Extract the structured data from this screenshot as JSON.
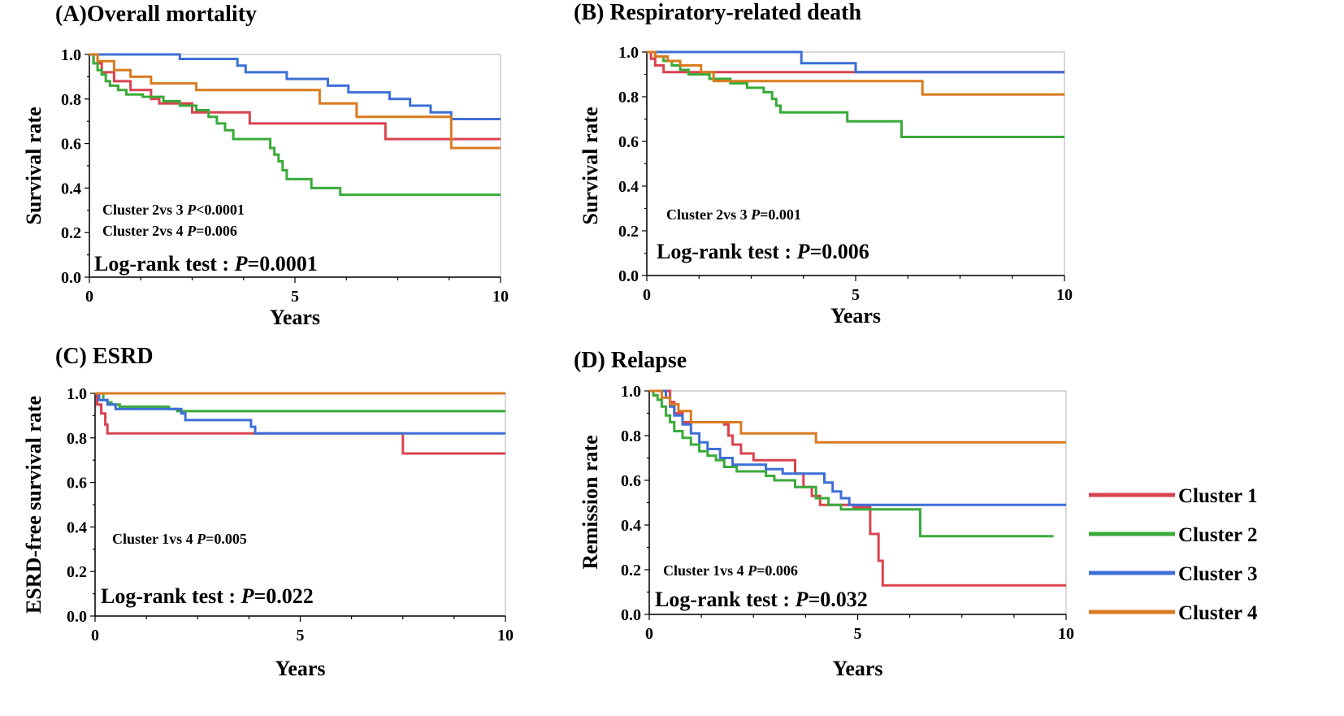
{
  "colors": {
    "Cluster 1": "#d9434f",
    "Cluster 2": "#3aaa3a",
    "Cluster 3": "#3d6fd6",
    "Cluster 4": "#d97b20"
  },
  "legend": [
    "Cluster 1",
    "Cluster 2",
    "Cluster 3",
    "Cluster 4"
  ],
  "chart_data": [
    {
      "id": "A",
      "type": "line",
      "step": true,
      "title": "(A)Overall mortality",
      "xlabel": "Years",
      "ylabel": "Survival rate",
      "xlim": [
        0,
        10
      ],
      "ylim": [
        0,
        1
      ],
      "xticks": [
        "0",
        "5",
        "10"
      ],
      "yticks": [
        "0.0",
        "0.2",
        "0.4",
        "0.6",
        "0.8",
        "1.0"
      ],
      "annotations": [
        {
          "pre": "Cluster 2vs 3 ",
          "p": "P",
          "post": "<0.0001"
        },
        {
          "pre": "Cluster 2vs 4 ",
          "p": "P",
          "post": "=0.006"
        }
      ],
      "logrank": {
        "pre": "Log-rank test : ",
        "p": "P",
        "post": "=0.0001"
      },
      "series": [
        {
          "name": "Cluster 1",
          "points": [
            [
              0,
              1
            ],
            [
              0.1,
              0.96
            ],
            [
              0.3,
              0.92
            ],
            [
              0.6,
              0.88
            ],
            [
              1,
              0.84
            ],
            [
              1.5,
              0.8
            ],
            [
              1.7,
              0.78
            ],
            [
              2.5,
              0.74
            ],
            [
              3.9,
              0.69
            ],
            [
              7.2,
              0.62
            ],
            [
              10,
              0.62
            ]
          ]
        },
        {
          "name": "Cluster 2",
          "points": [
            [
              0,
              1
            ],
            [
              0.1,
              0.96
            ],
            [
              0.2,
              0.93
            ],
            [
              0.3,
              0.91
            ],
            [
              0.4,
              0.88
            ],
            [
              0.5,
              0.86
            ],
            [
              0.7,
              0.84
            ],
            [
              0.9,
              0.82
            ],
            [
              1.3,
              0.81
            ],
            [
              1.8,
              0.79
            ],
            [
              2.2,
              0.77
            ],
            [
              2.6,
              0.75
            ],
            [
              2.9,
              0.72
            ],
            [
              3.1,
              0.69
            ],
            [
              3.3,
              0.66
            ],
            [
              3.5,
              0.62
            ],
            [
              4.4,
              0.58
            ],
            [
              4.5,
              0.55
            ],
            [
              4.6,
              0.52
            ],
            [
              4.7,
              0.48
            ],
            [
              4.8,
              0.44
            ],
            [
              5.4,
              0.4
            ],
            [
              6.1,
              0.37
            ],
            [
              10,
              0.37
            ]
          ]
        },
        {
          "name": "Cluster 3",
          "points": [
            [
              0,
              1
            ],
            [
              1.7,
              1
            ],
            [
              2.2,
              0.98
            ],
            [
              3.6,
              0.95
            ],
            [
              3.8,
              0.92
            ],
            [
              4.8,
              0.89
            ],
            [
              5.8,
              0.86
            ],
            [
              6.3,
              0.83
            ],
            [
              7.3,
              0.8
            ],
            [
              7.8,
              0.77
            ],
            [
              8.3,
              0.74
            ],
            [
              8.8,
              0.71
            ],
            [
              10,
              0.71
            ]
          ]
        },
        {
          "name": "Cluster 4",
          "points": [
            [
              0,
              1
            ],
            [
              0.2,
              0.97
            ],
            [
              0.6,
              0.93
            ],
            [
              1,
              0.9
            ],
            [
              1.5,
              0.87
            ],
            [
              2.6,
              0.84
            ],
            [
              5.6,
              0.78
            ],
            [
              6.5,
              0.72
            ],
            [
              8.8,
              0.58
            ],
            [
              10,
              0.58
            ]
          ]
        }
      ]
    },
    {
      "id": "B",
      "type": "line",
      "step": true,
      "title": "(B) Respiratory-related death",
      "xlabel": "Years",
      "ylabel": "Survival rate",
      "xlim": [
        0,
        10
      ],
      "ylim": [
        0,
        1
      ],
      "xticks": [
        "0",
        "5",
        "10"
      ],
      "yticks": [
        "0.0",
        "0.2",
        "0.4",
        "0.6",
        "0.8",
        "1.0"
      ],
      "annotations": [
        {
          "pre": "Cluster 2vs 3 ",
          "p": "P",
          "post": "=0.001"
        }
      ],
      "logrank": {
        "pre": "Log-rank test : ",
        "p": "P",
        "post": "=0.006"
      },
      "series": [
        {
          "name": "Cluster 1",
          "points": [
            [
              0,
              1
            ],
            [
              0.1,
              0.97
            ],
            [
              0.2,
              0.94
            ],
            [
              0.4,
              0.91
            ],
            [
              10,
              0.91
            ]
          ]
        },
        {
          "name": "Cluster 2",
          "points": [
            [
              0,
              1
            ],
            [
              0.2,
              0.98
            ],
            [
              0.4,
              0.96
            ],
            [
              0.6,
              0.94
            ],
            [
              0.8,
              0.92
            ],
            [
              1,
              0.9
            ],
            [
              1.5,
              0.88
            ],
            [
              2,
              0.86
            ],
            [
              2.4,
              0.84
            ],
            [
              2.8,
              0.82
            ],
            [
              3,
              0.79
            ],
            [
              3.1,
              0.76
            ],
            [
              3.2,
              0.73
            ],
            [
              4.8,
              0.69
            ],
            [
              6.1,
              0.62
            ],
            [
              10,
              0.62
            ]
          ]
        },
        {
          "name": "Cluster 3",
          "points": [
            [
              0,
              1
            ],
            [
              3.6,
              1
            ],
            [
              3.7,
              0.95
            ],
            [
              5,
              0.91
            ],
            [
              10,
              0.91
            ]
          ]
        },
        {
          "name": "Cluster 4",
          "points": [
            [
              0,
              1
            ],
            [
              0.2,
              0.98
            ],
            [
              0.5,
              0.96
            ],
            [
              0.8,
              0.94
            ],
            [
              1.3,
              0.91
            ],
            [
              1.6,
              0.87
            ],
            [
              6.6,
              0.81
            ],
            [
              10,
              0.81
            ]
          ]
        }
      ]
    },
    {
      "id": "C",
      "type": "line",
      "step": true,
      "title": "(C) ESRD",
      "xlabel": "Years",
      "ylabel": "ESRD-free survival rate",
      "xlim": [
        0,
        10
      ],
      "ylim": [
        0,
        1
      ],
      "xticks": [
        "0",
        "5",
        "10"
      ],
      "yticks": [
        "0.0",
        "0.2",
        "0.4",
        "0.6",
        "0.8",
        "1.0"
      ],
      "annotations": [
        {
          "pre": "Cluster 1vs 4 ",
          "p": "P",
          "post": "=0.005"
        }
      ],
      "logrank": {
        "pre": "Log-rank test : ",
        "p": "P",
        "post": "=0.022"
      },
      "series": [
        {
          "name": "Cluster 1",
          "points": [
            [
              0,
              1
            ],
            [
              0.05,
              0.95
            ],
            [
              0.15,
              0.91
            ],
            [
              0.25,
              0.86
            ],
            [
              0.3,
              0.82
            ],
            [
              7.5,
              0.73
            ],
            [
              10,
              0.73
            ]
          ]
        },
        {
          "name": "Cluster 2",
          "points": [
            [
              0,
              1
            ],
            [
              0.2,
              0.97
            ],
            [
              0.3,
              0.96
            ],
            [
              0.4,
              0.95
            ],
            [
              0.6,
              0.94
            ],
            [
              1.8,
              0.93
            ],
            [
              2,
              0.92
            ],
            [
              10,
              0.92
            ]
          ]
        },
        {
          "name": "Cluster 3",
          "points": [
            [
              0,
              1
            ],
            [
              0.1,
              0.97
            ],
            [
              0.3,
              0.95
            ],
            [
              0.5,
              0.93
            ],
            [
              2.1,
              0.91
            ],
            [
              2.2,
              0.88
            ],
            [
              3.8,
              0.85
            ],
            [
              3.9,
              0.82
            ],
            [
              10,
              0.82
            ]
          ]
        },
        {
          "name": "Cluster 4",
          "points": [
            [
              0,
              1
            ],
            [
              10,
              1
            ]
          ]
        }
      ]
    },
    {
      "id": "D",
      "type": "line",
      "step": true,
      "title": "(D) Relapse",
      "xlabel": "Years",
      "ylabel": "Remission rate",
      "xlim": [
        0,
        10
      ],
      "ylim": [
        0,
        1
      ],
      "xticks": [
        "0",
        "5",
        "10"
      ],
      "yticks": [
        "0.0",
        "0.2",
        "0.4",
        "0.6",
        "0.8",
        "1.0"
      ],
      "annotations": [
        {
          "pre": "Cluster 1vs 4 ",
          "p": "P",
          "post": "=0.006"
        }
      ],
      "logrank": {
        "pre": "Log-rank test : ",
        "p": "P",
        "post": "=0.032"
      },
      "series": [
        {
          "name": "Cluster 1",
          "points": [
            [
              0,
              1
            ],
            [
              0.5,
              0.95
            ],
            [
              0.6,
              0.9
            ],
            [
              0.8,
              0.86
            ],
            [
              1.8,
              0.85
            ],
            [
              1.9,
              0.8
            ],
            [
              2,
              0.76
            ],
            [
              2.2,
              0.72
            ],
            [
              2.5,
              0.69
            ],
            [
              3.5,
              0.63
            ],
            [
              3.7,
              0.57
            ],
            [
              3.9,
              0.53
            ],
            [
              4.1,
              0.49
            ],
            [
              4.9,
              0.48
            ],
            [
              5.3,
              0.36
            ],
            [
              5.5,
              0.24
            ],
            [
              5.6,
              0.13
            ],
            [
              10,
              0.13
            ]
          ]
        },
        {
          "name": "Cluster 2",
          "points": [
            [
              0,
              1
            ],
            [
              0.1,
              0.98
            ],
            [
              0.2,
              0.96
            ],
            [
              0.3,
              0.93
            ],
            [
              0.4,
              0.89
            ],
            [
              0.5,
              0.86
            ],
            [
              0.6,
              0.82
            ],
            [
              0.8,
              0.79
            ],
            [
              1,
              0.76
            ],
            [
              1.2,
              0.73
            ],
            [
              1.4,
              0.71
            ],
            [
              1.6,
              0.69
            ],
            [
              1.8,
              0.66
            ],
            [
              2.1,
              0.64
            ],
            [
              2.8,
              0.62
            ],
            [
              3,
              0.6
            ],
            [
              3.5,
              0.57
            ],
            [
              4,
              0.52
            ],
            [
              4.3,
              0.49
            ],
            [
              4.6,
              0.47
            ],
            [
              6.5,
              0.35
            ],
            [
              9.7,
              0.35
            ]
          ]
        },
        {
          "name": "Cluster 3",
          "points": [
            [
              0,
              1
            ],
            [
              0.4,
              0.97
            ],
            [
              0.5,
              0.93
            ],
            [
              0.6,
              0.89
            ],
            [
              0.8,
              0.85
            ],
            [
              1,
              0.81
            ],
            [
              1.2,
              0.77
            ],
            [
              1.4,
              0.74
            ],
            [
              1.7,
              0.7
            ],
            [
              2,
              0.67
            ],
            [
              2.8,
              0.65
            ],
            [
              3.2,
              0.63
            ],
            [
              4.2,
              0.59
            ],
            [
              4.4,
              0.55
            ],
            [
              4.6,
              0.52
            ],
            [
              4.8,
              0.49
            ],
            [
              10,
              0.49
            ]
          ]
        },
        {
          "name": "Cluster 4",
          "points": [
            [
              0,
              1
            ],
            [
              0.3,
              0.97
            ],
            [
              0.5,
              0.94
            ],
            [
              0.7,
              0.91
            ],
            [
              1,
              0.86
            ],
            [
              2.2,
              0.81
            ],
            [
              4,
              0.77
            ],
            [
              10,
              0.77
            ]
          ]
        }
      ]
    }
  ]
}
